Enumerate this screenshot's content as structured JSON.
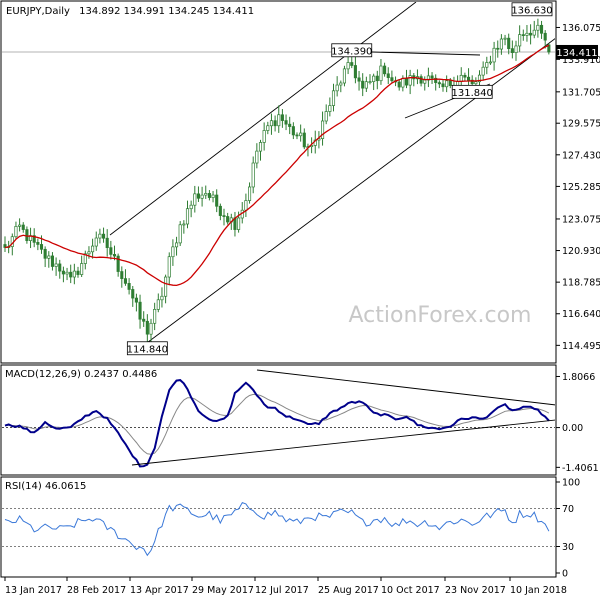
{
  "header": {
    "symbol": "EURJPY,Daily",
    "ohlc": "134.892 134.991 134.245 134.411"
  },
  "watermark": "ActionForex.com",
  "chart_data": [
    {
      "type": "candlestick",
      "title": "EURJPY,Daily",
      "ylim": [
        113.5,
        137.6
      ],
      "y_ticks": [
        "136.075",
        "133.910",
        "131.705",
        "129.575",
        "127.430",
        "125.285",
        "123.075",
        "120.930",
        "118.785",
        "116.640",
        "114.495"
      ],
      "y_tick_values": [
        136.075,
        133.91,
        131.705,
        129.575,
        127.43,
        125.285,
        123.075,
        120.93,
        118.785,
        116.64,
        114.495
      ],
      "x_ticks": [
        "13 Jan 2017",
        "28 Feb 2017",
        "13 Apr 2017",
        "29 May 2017",
        "12 Jul 2017",
        "25 Aug 2017",
        "10 Oct 2017",
        "23 Nov 2017",
        "10 Jan 2018"
      ],
      "last_price": "134.411",
      "last_price_value": 134.411,
      "annotations": [
        {
          "text": "136.630",
          "value": 136.63,
          "index": 146
        },
        {
          "text": "134.390",
          "value": 134.39,
          "index": 95
        },
        {
          "text": "131.840",
          "value": 131.84,
          "index": 128
        },
        {
          "text": "114.840",
          "value": 114.84,
          "index": 39
        }
      ],
      "moving_average": {
        "color": "#cc0000"
      },
      "colors": {
        "candle": "#2e7d32",
        "trendline": "#000000",
        "price_line": "#9a9a9a"
      },
      "ohlc_last": [
        134.892,
        134.991,
        134.245,
        134.411
      ]
    },
    {
      "type": "line",
      "title": "MACD(12,26,9) 0.2437 0.4486",
      "ylim": [
        -1.5,
        2.0
      ],
      "y_ticks": [
        "1.8066",
        "0.00",
        "-1.4061"
      ],
      "y_tick_values": [
        1.8066,
        0,
        -1.4061
      ],
      "series": [
        {
          "name": "MACD",
          "color": "#00008b"
        },
        {
          "name": "Signal",
          "color": "#888888"
        }
      ],
      "last": [
        0.2437,
        0.4486
      ]
    },
    {
      "type": "line",
      "title": "RSI(14) 46.0615",
      "ylim": [
        0,
        100
      ],
      "y_ticks": [
        "100",
        "70",
        "30",
        "0"
      ],
      "y_tick_values": [
        100,
        70,
        30,
        0
      ],
      "series": [
        {
          "name": "RSI",
          "color": "#3a78d8"
        }
      ],
      "last": 46.0615
    }
  ]
}
